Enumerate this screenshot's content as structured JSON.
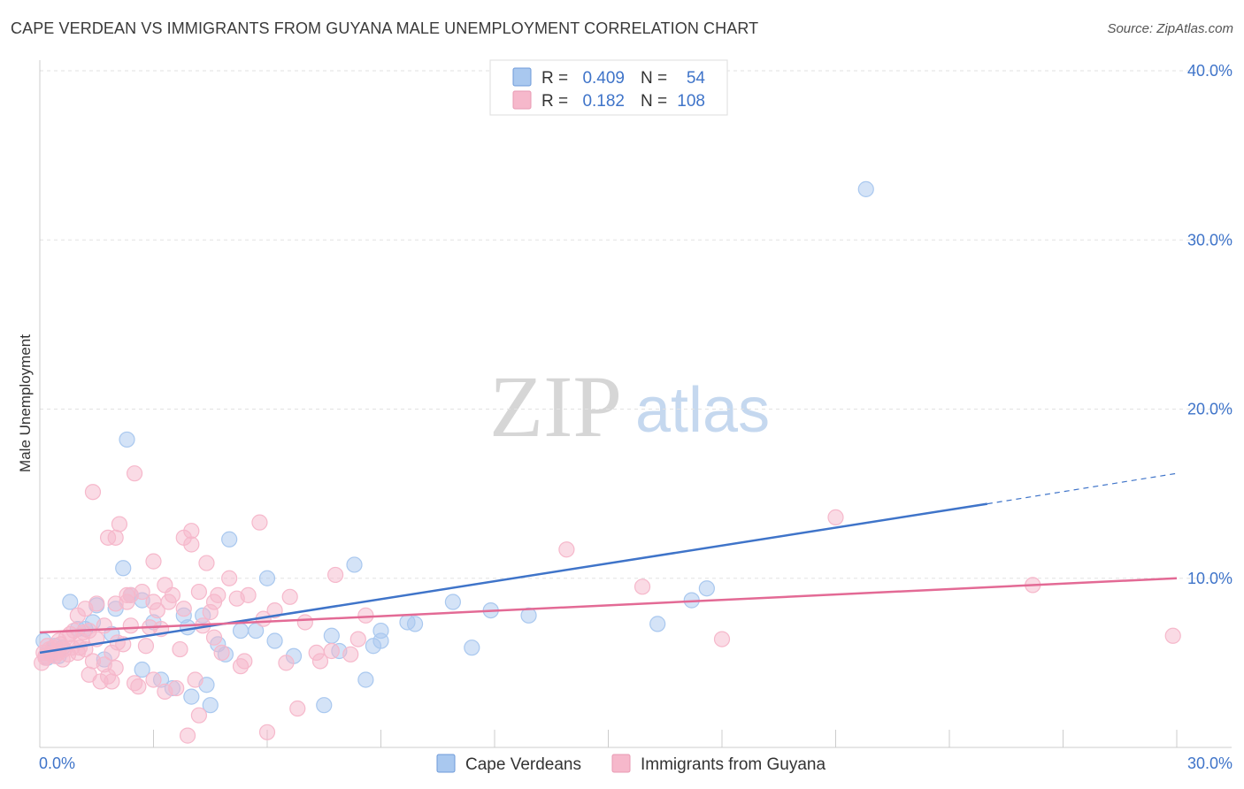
{
  "header": {
    "title": "CAPE VERDEAN VS IMMIGRANTS FROM GUYANA MALE UNEMPLOYMENT CORRELATION CHART",
    "source": "Source: ZipAtlas.com"
  },
  "watermark": {
    "zip": "ZIP",
    "atlas": "atlas"
  },
  "legend": {
    "rows": [
      {
        "r_label": "R =",
        "r_value": "0.409",
        "n_label": "N =",
        "n_value": "54",
        "color": "#a9c8ef"
      },
      {
        "r_label": "R =",
        "r_value": "0.182",
        "n_label": "N =",
        "n_value": "108",
        "color": "#f6b8cb"
      }
    ]
  },
  "chart_data": {
    "type": "scatter",
    "title": "CAPE VERDEAN VS IMMIGRANTS FROM GUYANA MALE UNEMPLOYMENT CORRELATION CHART",
    "xlabel": "",
    "ylabel": "Male Unemployment",
    "xlim": [
      0,
      30
    ],
    "ylim": [
      0,
      40
    ],
    "x_tick_labels": [
      "0.0%",
      "30.0%"
    ],
    "y_ticks": [
      10,
      20,
      30,
      40
    ],
    "y_tick_labels": [
      "10.0%",
      "20.0%",
      "30.0%",
      "40.0%"
    ],
    "grid": true,
    "legend_position": "bottom",
    "series": [
      {
        "name": "Cape Verdeans",
        "color": "#3f74c9",
        "fill": "#a9c8ef",
        "trend": {
          "x0": 0,
          "y0": 5.6,
          "x1": 25.0,
          "y1": 14.4,
          "dash_to_x": 30,
          "dash_to_y": 16.2
        },
        "points": [
          [
            0.2,
            5.3
          ],
          [
            0.3,
            5.6
          ],
          [
            0.4,
            6.0
          ],
          [
            0.5,
            5.4
          ],
          [
            0.6,
            5.9
          ],
          [
            0.8,
            8.6
          ],
          [
            1.0,
            7.0
          ],
          [
            1.2,
            7.0
          ],
          [
            1.4,
            7.4
          ],
          [
            1.5,
            8.4
          ],
          [
            1.7,
            5.2
          ],
          [
            1.9,
            6.7
          ],
          [
            2.0,
            8.2
          ],
          [
            2.2,
            10.6
          ],
          [
            2.3,
            18.2
          ],
          [
            2.4,
            9.0
          ],
          [
            2.7,
            8.7
          ],
          [
            2.7,
            4.6
          ],
          [
            3.0,
            7.4
          ],
          [
            3.2,
            4.0
          ],
          [
            3.5,
            3.5
          ],
          [
            3.8,
            7.8
          ],
          [
            3.9,
            7.1
          ],
          [
            4.0,
            3.0
          ],
          [
            4.3,
            7.8
          ],
          [
            4.4,
            3.7
          ],
          [
            4.5,
            2.5
          ],
          [
            4.7,
            6.1
          ],
          [
            4.9,
            5.5
          ],
          [
            5.0,
            12.3
          ],
          [
            5.3,
            6.9
          ],
          [
            5.7,
            6.9
          ],
          [
            6.0,
            10.0
          ],
          [
            6.2,
            6.3
          ],
          [
            6.7,
            5.4
          ],
          [
            7.5,
            2.5
          ],
          [
            7.7,
            6.6
          ],
          [
            7.9,
            5.7
          ],
          [
            8.3,
            10.8
          ],
          [
            8.6,
            4.0
          ],
          [
            8.8,
            6.0
          ],
          [
            9.0,
            6.3
          ],
          [
            9.0,
            6.9
          ],
          [
            9.7,
            7.4
          ],
          [
            9.9,
            7.3
          ],
          [
            10.9,
            8.6
          ],
          [
            11.4,
            5.9
          ],
          [
            11.9,
            8.1
          ],
          [
            12.9,
            7.8
          ],
          [
            16.3,
            7.3
          ],
          [
            17.2,
            8.7
          ],
          [
            17.6,
            9.4
          ],
          [
            21.8,
            33.0
          ],
          [
            0.1,
            6.3
          ]
        ]
      },
      {
        "name": "Immigrants from Guyana",
        "color": "#e36a95",
        "fill": "#f6b8cb",
        "trend": {
          "x0": 0,
          "y0": 6.8,
          "x1": 30,
          "y1": 10.0
        },
        "points": [
          [
            0.05,
            5.0
          ],
          [
            0.1,
            5.6
          ],
          [
            0.15,
            5.3
          ],
          [
            0.2,
            6.0
          ],
          [
            0.25,
            5.8
          ],
          [
            0.3,
            5.5
          ],
          [
            0.35,
            5.9
          ],
          [
            0.4,
            5.4
          ],
          [
            0.45,
            5.7
          ],
          [
            0.5,
            5.6
          ],
          [
            0.55,
            6.1
          ],
          [
            0.6,
            5.2
          ],
          [
            0.65,
            5.8
          ],
          [
            0.7,
            6.5
          ],
          [
            0.75,
            5.5
          ],
          [
            0.8,
            6.7
          ],
          [
            0.85,
            5.9
          ],
          [
            0.9,
            6.9
          ],
          [
            1.0,
            5.6
          ],
          [
            1.0,
            7.8
          ],
          [
            1.1,
            6.3
          ],
          [
            1.2,
            8.2
          ],
          [
            1.2,
            5.8
          ],
          [
            1.3,
            6.9
          ],
          [
            1.3,
            4.3
          ],
          [
            1.4,
            5.1
          ],
          [
            1.4,
            15.1
          ],
          [
            1.5,
            6.4
          ],
          [
            1.5,
            8.5
          ],
          [
            1.6,
            3.9
          ],
          [
            1.7,
            4.9
          ],
          [
            1.7,
            7.2
          ],
          [
            1.8,
            12.4
          ],
          [
            1.8,
            4.2
          ],
          [
            1.9,
            3.9
          ],
          [
            1.9,
            5.6
          ],
          [
            2.0,
            8.5
          ],
          [
            2.0,
            4.7
          ],
          [
            2.0,
            12.4
          ],
          [
            2.1,
            13.2
          ],
          [
            2.2,
            6.1
          ],
          [
            2.3,
            8.6
          ],
          [
            2.3,
            9.0
          ],
          [
            2.4,
            7.2
          ],
          [
            2.4,
            9.0
          ],
          [
            2.5,
            16.2
          ],
          [
            2.5,
            3.8
          ],
          [
            2.6,
            3.6
          ],
          [
            2.7,
            9.2
          ],
          [
            2.8,
            6.0
          ],
          [
            2.9,
            7.1
          ],
          [
            3.0,
            4.0
          ],
          [
            3.0,
            8.6
          ],
          [
            3.0,
            11.0
          ],
          [
            3.1,
            8.1
          ],
          [
            3.2,
            7.0
          ],
          [
            3.3,
            3.3
          ],
          [
            3.3,
            9.6
          ],
          [
            3.4,
            8.6
          ],
          [
            3.5,
            9.0
          ],
          [
            3.6,
            3.5
          ],
          [
            3.7,
            5.8
          ],
          [
            3.8,
            12.4
          ],
          [
            3.8,
            8.2
          ],
          [
            3.9,
            0.7
          ],
          [
            4.0,
            12.8
          ],
          [
            4.0,
            12.0
          ],
          [
            4.1,
            4.0
          ],
          [
            4.2,
            1.9
          ],
          [
            4.2,
            9.2
          ],
          [
            4.3,
            7.2
          ],
          [
            4.4,
            10.9
          ],
          [
            4.5,
            8.0
          ],
          [
            4.6,
            6.5
          ],
          [
            4.6,
            8.6
          ],
          [
            4.7,
            9.0
          ],
          [
            4.8,
            5.6
          ],
          [
            5.0,
            10.0
          ],
          [
            5.2,
            8.8
          ],
          [
            5.3,
            4.8
          ],
          [
            5.4,
            5.1
          ],
          [
            5.5,
            9.0
          ],
          [
            5.8,
            13.3
          ],
          [
            5.9,
            7.6
          ],
          [
            6.0,
            0.9
          ],
          [
            6.2,
            8.1
          ],
          [
            6.5,
            5.0
          ],
          [
            6.6,
            8.9
          ],
          [
            6.8,
            2.3
          ],
          [
            7.0,
            7.4
          ],
          [
            7.3,
            5.6
          ],
          [
            7.4,
            5.1
          ],
          [
            7.7,
            5.7
          ],
          [
            7.8,
            10.2
          ],
          [
            8.2,
            5.5
          ],
          [
            8.4,
            6.4
          ],
          [
            8.6,
            7.8
          ],
          [
            13.9,
            11.7
          ],
          [
            15.9,
            9.5
          ],
          [
            18.0,
            6.4
          ],
          [
            21.0,
            13.6
          ],
          [
            26.2,
            9.6
          ],
          [
            29.9,
            6.6
          ],
          [
            0.15,
            5.4
          ],
          [
            0.5,
            6.3
          ],
          [
            1.15,
            6.8
          ],
          [
            2.05,
            6.2
          ],
          [
            1.05,
            5.9
          ]
        ]
      }
    ]
  }
}
